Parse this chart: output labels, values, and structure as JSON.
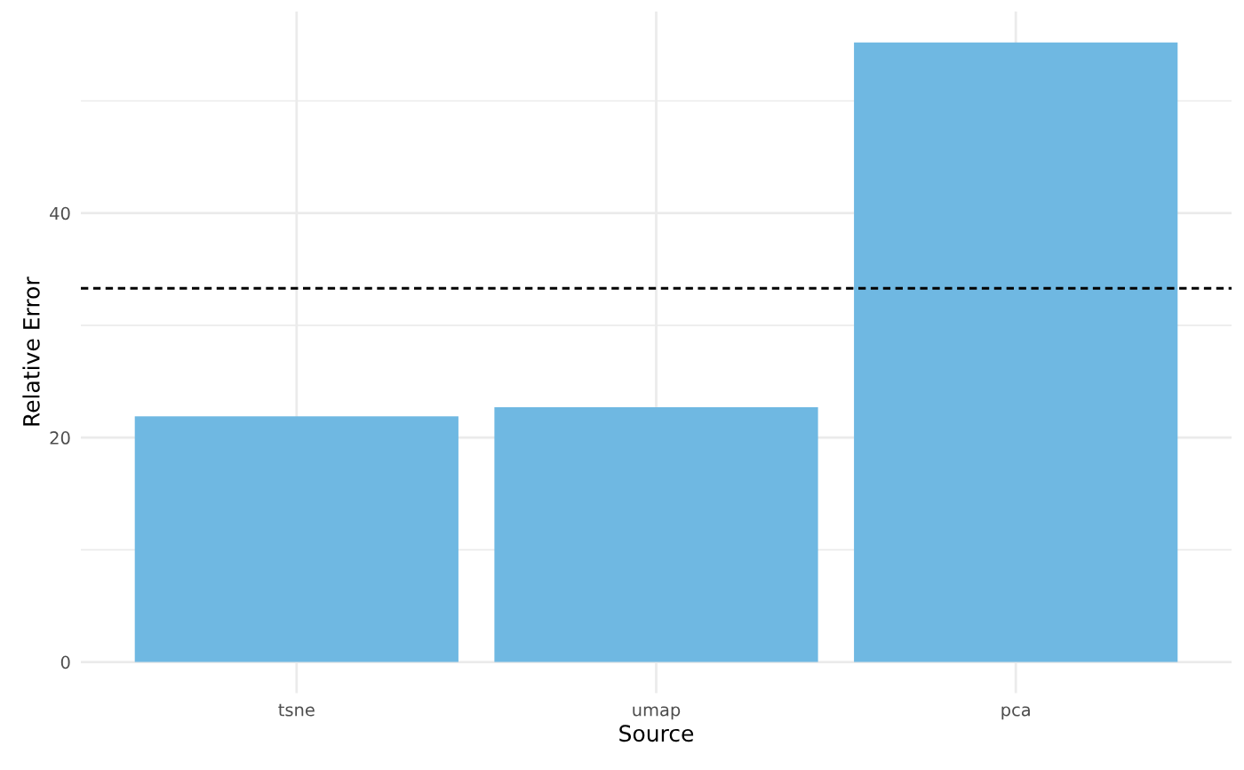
{
  "chart_data": {
    "type": "bar",
    "xlabel": "Source",
    "ylabel": "Relative Error",
    "categories": [
      "tsne",
      "umap",
      "pca"
    ],
    "values": [
      21.9,
      22.7,
      55.2
    ],
    "color": "#6fb8e2",
    "ylim": [
      -2.76,
      57.96
    ],
    "yticks": [
      0,
      {
        "value": 10,
        "label": null
      },
      20,
      {
        "value": 30,
        "label": null
      },
      40,
      {
        "value": 50,
        "label": null
      }
    ],
    "grid": true,
    "ref_lines": [
      {
        "axis": "y",
        "value": 33.3,
        "color": "#000000",
        "line_style": "dashed"
      }
    ]
  }
}
